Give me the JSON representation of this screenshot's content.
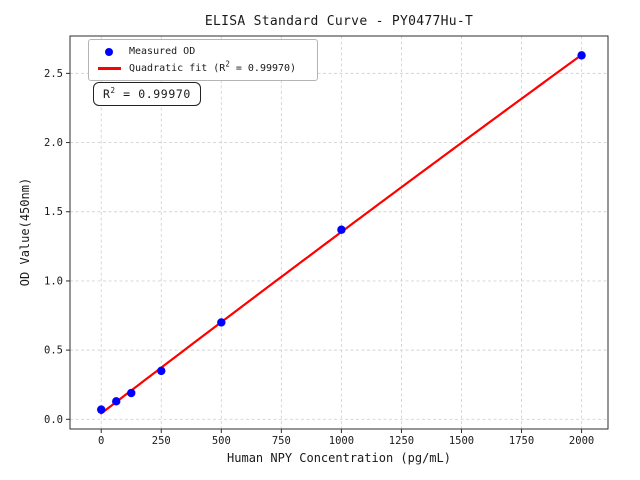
{
  "figure": {
    "background": "#ffffff"
  },
  "chart_data": {
    "type": "scatter",
    "title": "ELISA Standard Curve - PY0477Hu-T",
    "xlabel": "Human NPY Concentration (pg/mL)",
    "ylabel": "OD Value(450nm)",
    "xlim": [
      -130,
      2110
    ],
    "ylim": [
      -0.07,
      2.77
    ],
    "x_ticks": [
      0,
      250,
      500,
      750,
      1000,
      1250,
      1500,
      1750,
      2000
    ],
    "x_tick_labels": [
      "0",
      "250",
      "500",
      "750",
      "1000",
      "1250",
      "1500",
      "1750",
      "2000"
    ],
    "y_ticks": [
      0.0,
      0.5,
      1.0,
      1.5,
      2.0,
      2.5
    ],
    "y_tick_labels": [
      "0.0",
      "0.5",
      "1.0",
      "1.5",
      "2.0",
      "2.5"
    ],
    "grid": true,
    "legend_position": "upper-left",
    "series": [
      {
        "name": "Measured OD",
        "type": "scatter",
        "color": "#0000ff",
        "x": [
          0,
          62.5,
          125,
          250,
          500,
          1000,
          2000
        ],
        "y": [
          0.07,
          0.13,
          0.19,
          0.35,
          0.7,
          1.37,
          2.63
        ]
      },
      {
        "name": "Quadratic fit (R² = 0.99970)",
        "type": "quadratic_fit",
        "color": "#ff0000",
        "fit_of": "Measured OD",
        "x_range": [
          0,
          2000
        ],
        "r_squared": 0.9997
      }
    ],
    "annotation_text": "R² = 0.99970",
    "colors": {
      "grid": "#d4d4d4",
      "spine": "#2e2e2e",
      "text": "#1a1a1a",
      "background": "#ffffff"
    }
  },
  "legend": {
    "measured": {
      "label": "Measured OD",
      "marker_color": "#0000ff"
    },
    "fit": {
      "prefix": "Quadratic fit (R",
      "sup": "2",
      "suffix": " = 0.99970)",
      "line_color": "#ff0000"
    }
  },
  "annotation": {
    "prefix": "R",
    "sup": "2",
    "suffix": " = 0.99970"
  }
}
